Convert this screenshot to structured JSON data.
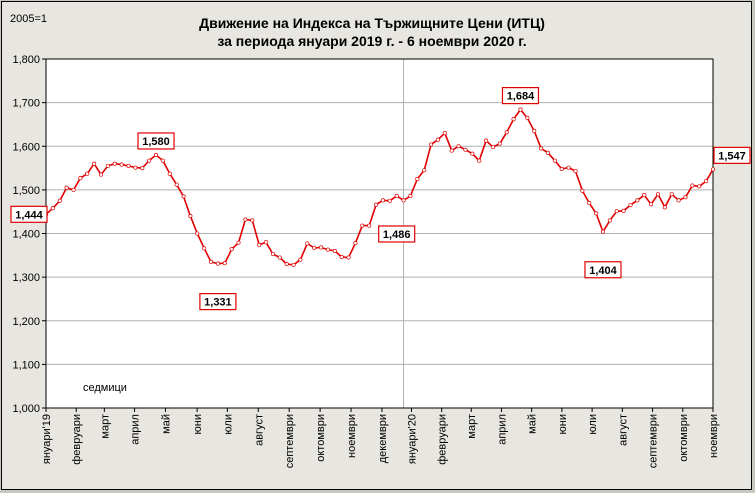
{
  "chart_data": {
    "type": "line",
    "title": "Движение на Индекса на Тържищните Цени (ИТЦ)",
    "subtitle": "за периода януари 2019 г. - 6 ноември 2020 г.",
    "base_label": "2005=1",
    "x_note": "седмици",
    "ylim": [
      1.0,
      1.8
    ],
    "yticks": [
      "1,000",
      "1,100",
      "1,200",
      "1,300",
      "1,400",
      "1,500",
      "1,600",
      "1,700",
      "1,800"
    ],
    "months": [
      {
        "label": "януари'19",
        "week": 0
      },
      {
        "label": "февруари",
        "week": 4.3
      },
      {
        "label": "март",
        "week": 8.3
      },
      {
        "label": "април",
        "week": 12.6
      },
      {
        "label": "май",
        "week": 17
      },
      {
        "label": "юни",
        "week": 21.5
      },
      {
        "label": "юли",
        "week": 25.8
      },
      {
        "label": "август",
        "week": 30.2
      },
      {
        "label": "септември",
        "week": 34.6
      },
      {
        "label": "октомври",
        "week": 39
      },
      {
        "label": "ноември",
        "week": 43.4
      },
      {
        "label": "декември",
        "week": 47.8
      },
      {
        "label": "януари'20",
        "week": 52
      },
      {
        "label": "февруари",
        "week": 56.3
      },
      {
        "label": "март",
        "week": 60.5
      },
      {
        "label": "април",
        "week": 64.8
      },
      {
        "label": "май",
        "week": 69.1
      },
      {
        "label": "юни",
        "week": 73.4
      },
      {
        "label": "юли",
        "week": 77.7
      },
      {
        "label": "август",
        "week": 82
      },
      {
        "label": "септември",
        "week": 86.3
      },
      {
        "label": "октомври",
        "week": 90.6
      },
      {
        "label": "ноември",
        "week": 94.9
      }
    ],
    "divider_week": 52,
    "x_max_week": 94.9,
    "values": [
      1.444,
      1.458,
      1.475,
      1.505,
      1.5,
      1.527,
      1.537,
      1.56,
      1.535,
      1.555,
      1.56,
      1.558,
      1.555,
      1.551,
      1.55,
      1.567,
      1.58,
      1.567,
      1.537,
      1.512,
      1.485,
      1.44,
      1.4,
      1.366,
      1.335,
      1.331,
      1.332,
      1.364,
      1.379,
      1.432,
      1.43,
      1.374,
      1.38,
      1.353,
      1.345,
      1.33,
      1.328,
      1.34,
      1.377,
      1.367,
      1.368,
      1.363,
      1.36,
      1.346,
      1.345,
      1.378,
      1.418,
      1.418,
      1.466,
      1.476,
      1.475,
      1.486,
      1.476,
      1.486,
      1.525,
      1.545,
      1.604,
      1.615,
      1.63,
      1.59,
      1.6,
      1.592,
      1.583,
      1.567,
      1.613,
      1.598,
      1.606,
      1.632,
      1.662,
      1.684,
      1.665,
      1.635,
      1.595,
      1.585,
      1.567,
      1.548,
      1.551,
      1.543,
      1.498,
      1.47,
      1.446,
      1.404,
      1.43,
      1.451,
      1.452,
      1.465,
      1.476,
      1.488,
      1.467,
      1.49,
      1.46,
      1.49,
      1.476,
      1.483,
      1.51,
      1.508,
      1.52,
      1.547
    ],
    "callouts": [
      {
        "week": 0,
        "label": "1,444",
        "dir": "start"
      },
      {
        "week": 16,
        "label": "1,580",
        "dir": "up"
      },
      {
        "week": 25,
        "label": "1,331",
        "dir": "down"
      },
      {
        "week": 51,
        "label": "1,486",
        "dir": "down"
      },
      {
        "week": 69,
        "label": "1,684",
        "dir": "up"
      },
      {
        "week": 81,
        "label": "1,404",
        "dir": "down"
      },
      {
        "week": 97,
        "label": "1,547",
        "dir": "end"
      }
    ],
    "colors": {
      "line": "#e00000",
      "marker_fill": "#ffffff",
      "plot_bg": "#ffffff",
      "grid": "#b0b0b0",
      "callout_border": "#e00000"
    },
    "grid": true,
    "legend": "none"
  }
}
